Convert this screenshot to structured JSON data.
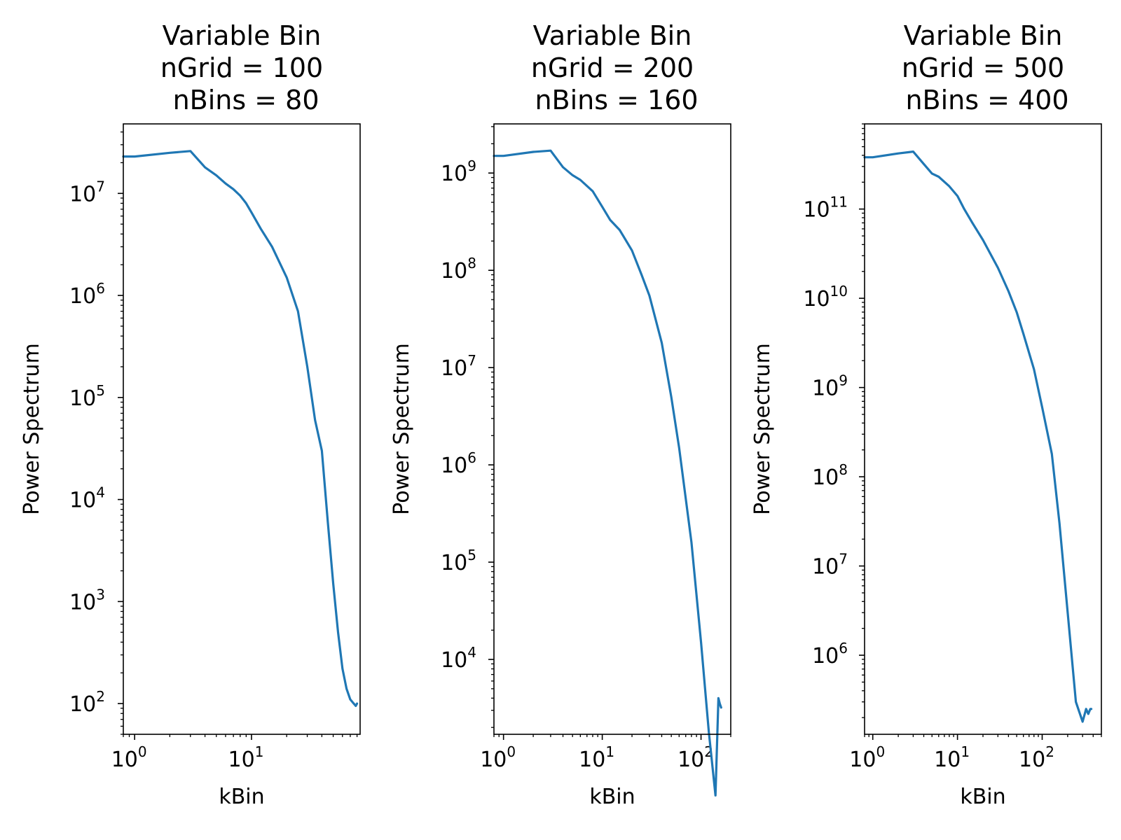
{
  "chart_data": [
    {
      "type": "line",
      "title": [
        "Variable Bin",
        "nGrid = 100",
        " nBins = 80"
      ],
      "xlabel": "kBin",
      "ylabel": "Power Spectrum",
      "xscale": "log",
      "yscale": "log",
      "xlim": [
        0.8,
        85
      ],
      "ylim": [
        50,
        48000000
      ],
      "xticks": [
        {
          "base": "10",
          "exp": "0",
          "value": 1
        },
        {
          "base": "10",
          "exp": "1",
          "value": 10
        }
      ],
      "yticks": [
        {
          "base": "10",
          "exp": "2",
          "value": 100
        },
        {
          "base": "10",
          "exp": "3",
          "value": 1000
        },
        {
          "base": "10",
          "exp": "4",
          "value": 10000
        },
        {
          "base": "10",
          "exp": "5",
          "value": 100000
        },
        {
          "base": "10",
          "exp": "6",
          "value": 1000000
        },
        {
          "base": "10",
          "exp": "7",
          "value": 10000000
        }
      ],
      "grid": false,
      "color": "#1f77b4",
      "x": [
        0.8,
        1,
        2,
        3,
        4,
        5,
        6,
        7,
        8,
        9,
        10,
        12,
        15,
        20,
        25,
        30,
        35,
        40,
        45,
        50,
        55,
        60,
        65,
        70,
        75,
        78,
        80
      ],
      "y": [
        23000000,
        23000000,
        25000000,
        26000000,
        18000000,
        15000000,
        12500000,
        11000000,
        9500000,
        8000000,
        6500000,
        4500000,
        3000000,
        1500000,
        700000,
        200000,
        60000,
        30000,
        6000,
        1500,
        500,
        220,
        140,
        110,
        100,
        95,
        100
      ]
    },
    {
      "type": "line",
      "title": [
        "Variable Bin",
        "nGrid = 200",
        " nBins = 160"
      ],
      "xlabel": "kBin",
      "ylabel": "Power Spectrum",
      "xscale": "log",
      "yscale": "log",
      "xlim": [
        0.8,
        200
      ],
      "ylim": [
        1700,
        3200000000
      ],
      "xticks": [
        {
          "base": "10",
          "exp": "0",
          "value": 1
        },
        {
          "base": "10",
          "exp": "1",
          "value": 10
        },
        {
          "base": "10",
          "exp": "2",
          "value": 100
        }
      ],
      "yticks": [
        {
          "base": "10",
          "exp": "4",
          "value": 10000
        },
        {
          "base": "10",
          "exp": "5",
          "value": 100000
        },
        {
          "base": "10",
          "exp": "6",
          "value": 1000000
        },
        {
          "base": "10",
          "exp": "7",
          "value": 10000000
        },
        {
          "base": "10",
          "exp": "8",
          "value": 100000000
        },
        {
          "base": "10",
          "exp": "9",
          "value": 1000000000
        }
      ],
      "grid": false,
      "color": "#1f77b4",
      "x": [
        0.8,
        1,
        2,
        3,
        4,
        5,
        6,
        8,
        10,
        12,
        15,
        20,
        25,
        30,
        40,
        50,
        60,
        80,
        100,
        120,
        140,
        150,
        155,
        160
      ],
      "y": [
        1500000000,
        1500000000,
        1650000000,
        1700000000,
        1150000000,
        950000000,
        850000000,
        650000000,
        450000000,
        330000000,
        260000000,
        160000000,
        90000000,
        55000000,
        18000000,
        5000000,
        1500000,
        160000,
        15000,
        1800,
        400,
        4000,
        3500,
        3200
      ]
    },
    {
      "type": "line",
      "title": [
        "Variable Bin",
        "nGrid = 500",
        " nBins = 400"
      ],
      "xlabel": "kBin",
      "ylabel": "Power Spectrum",
      "xscale": "log",
      "yscale": "log",
      "xlim": [
        0.8,
        500
      ],
      "ylim": [
        130000,
        900000000000
      ],
      "xticks": [
        {
          "base": "10",
          "exp": "0",
          "value": 1
        },
        {
          "base": "10",
          "exp": "1",
          "value": 10
        },
        {
          "base": "10",
          "exp": "2",
          "value": 100
        }
      ],
      "yticks": [
        {
          "base": "10",
          "exp": "6",
          "value": 1000000
        },
        {
          "base": "10",
          "exp": "7",
          "value": 10000000
        },
        {
          "base": "10",
          "exp": "8",
          "value": 100000000
        },
        {
          "base": "10",
          "exp": "9",
          "value": 1000000000
        },
        {
          "base": "10",
          "exp": "10",
          "value": 10000000000
        },
        {
          "base": "10",
          "exp": "11",
          "value": 100000000000
        }
      ],
      "grid": false,
      "color": "#1f77b4",
      "x": [
        0.8,
        1,
        2,
        3,
        4,
        5,
        6,
        8,
        10,
        12,
        15,
        20,
        30,
        40,
        50,
        60,
        80,
        100,
        130,
        160,
        200,
        250,
        300,
        330,
        350,
        370,
        380
      ],
      "y": [
        380000000000,
        380000000000,
        420000000000,
        440000000000,
        320000000000,
        250000000000,
        230000000000,
        180000000000,
        140000000000,
        100000000000,
        70000000000,
        45000000000,
        22000000000,
        12000000000,
        7000000000,
        4000000000,
        1600000000,
        600000000,
        180000000,
        30000000,
        3000000,
        300000,
        180000,
        250000,
        220000,
        250000,
        250000
      ]
    }
  ]
}
